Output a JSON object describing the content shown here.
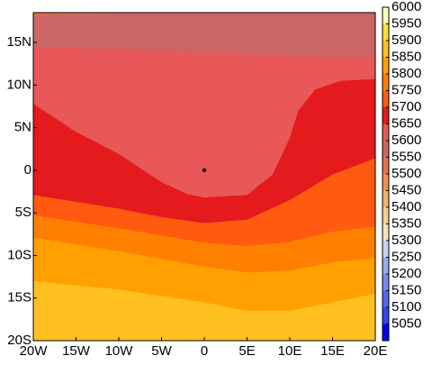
{
  "chart_data": {
    "type": "contour",
    "xlim": [
      -20,
      20
    ],
    "ylim": [
      -20,
      18.5
    ],
    "xticks": [
      {
        "value": -20,
        "label": "20W"
      },
      {
        "value": -15,
        "label": "15W"
      },
      {
        "value": -10,
        "label": "10W"
      },
      {
        "value": -5,
        "label": "5W"
      },
      0,
      {
        "value": 5,
        "label": "5E"
      },
      {
        "value": 10,
        "label": "10E"
      },
      {
        "value": 15,
        "label": "15E"
      },
      {
        "value": 20,
        "label": "20E"
      }
    ],
    "yticks": [
      {
        "value": -20,
        "label": "20S"
      },
      {
        "value": -15,
        "label": "15S"
      },
      {
        "value": -10,
        "label": "10S"
      },
      {
        "value": -5,
        "label": "5S"
      },
      0,
      {
        "value": 5,
        "label": "5N"
      },
      {
        "value": 10,
        "label": "10N"
      },
      {
        "value": 15,
        "label": "15N"
      }
    ],
    "clim": [
      5000,
      6000
    ],
    "cticks": [
      5050,
      5100,
      5150,
      5200,
      5250,
      5300,
      5350,
      5400,
      5450,
      5500,
      5550,
      5600,
      5650,
      5700,
      5750,
      5800,
      5850,
      5900,
      5950,
      6000
    ],
    "colors": [
      "#0000ff",
      "#3344ee",
      "#5566ee",
      "#7788ee",
      "#99aaee",
      "#c8d4ee",
      "#f5e4b8",
      "#f2d090",
      "#f0b070",
      "#f09050",
      "#e8704a",
      "#cc6666",
      "#e85858",
      "#e41a1c",
      "#ff5a10",
      "#ff8000",
      "#ffa000",
      "#ffc020",
      "#ffe030",
      "#ffffc0"
    ],
    "contours": [
      {
        "level": 5850,
        "x": [
          -20,
          -10,
          0,
          5,
          10,
          15,
          20
        ],
        "y": [
          -13,
          -14,
          -15.5,
          -16.5,
          -16.5,
          -15.5,
          -14.5
        ]
      },
      {
        "level": 5800,
        "x": [
          -20,
          -10,
          0,
          5,
          10,
          15,
          20
        ],
        "y": [
          -7.9,
          -9.5,
          -11.3,
          -12,
          -11.8,
          -10.8,
          -10.3
        ]
      },
      {
        "level": 5750,
        "x": [
          -20,
          -10,
          0,
          5,
          10,
          15,
          20
        ],
        "y": [
          -5.3,
          -6.8,
          -8.5,
          -8.9,
          -8.4,
          -7.2,
          -6.6
        ]
      },
      {
        "level": 5700,
        "x": [
          -20,
          -10,
          -5,
          0,
          5,
          10,
          15,
          20
        ],
        "y": [
          -2.9,
          -4.5,
          -5.5,
          -6.2,
          -5.8,
          -3.5,
          -0.5,
          1.4
        ]
      },
      {
        "level": 5650,
        "x": [
          -20,
          -15,
          -10,
          -5,
          -2,
          0,
          5,
          8,
          10,
          11,
          13,
          16,
          20
        ],
        "y": [
          7.8,
          4.5,
          1.9,
          -1.4,
          -2.8,
          -3.2,
          -2.9,
          -0.5,
          3.8,
          7,
          9.5,
          10.5,
          10.7
        ]
      },
      {
        "level": 5600,
        "x": [
          -20,
          -10,
          -5,
          0,
          5,
          10,
          20
        ],
        "y": [
          14.5,
          14.2,
          14,
          13.8,
          13.6,
          13.4,
          13.3
        ]
      },
      {
        "level": 5550,
        "x": [
          -20,
          -12,
          -5
        ],
        "y": [
          18.2,
          18.4,
          18.5
        ]
      }
    ],
    "point": {
      "x": 0,
      "y": 0
    }
  }
}
